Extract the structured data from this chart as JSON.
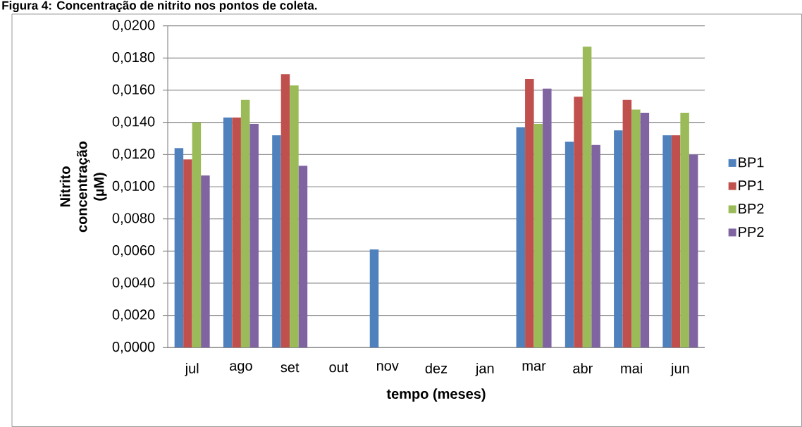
{
  "chart_data": {
    "type": "bar",
    "title": "Figura 4: Concentração de nitrito nos pontos de coleta.",
    "xlabel": "tempo (meses)",
    "ylabel": "Nitrito concentração (µM)",
    "categories": [
      "jul",
      "ago",
      "set",
      "out",
      "nov",
      "dez",
      "jan",
      "mar",
      "abr",
      "mai",
      "jun"
    ],
    "series": [
      {
        "name": "BP1",
        "color": "#4f81bd",
        "values": [
          0.0124,
          0.0143,
          0.0132,
          null,
          0.0061,
          null,
          null,
          0.0137,
          0.0128,
          0.0135,
          0.0132
        ]
      },
      {
        "name": "PP1",
        "color": "#c0504d",
        "values": [
          0.0117,
          0.0143,
          0.017,
          null,
          null,
          null,
          null,
          0.0167,
          0.0156,
          0.0154,
          0.0132
        ]
      },
      {
        "name": "BP2",
        "color": "#9bbb59",
        "values": [
          0.014,
          0.0154,
          0.0163,
          null,
          null,
          null,
          null,
          0.0139,
          0.0187,
          0.0148,
          0.0146
        ]
      },
      {
        "name": "PP2",
        "color": "#8064a2",
        "values": [
          0.0107,
          0.0139,
          0.0113,
          null,
          null,
          null,
          null,
          0.0161,
          0.0126,
          0.0146,
          0.012
        ]
      }
    ],
    "ylim": [
      0,
      0.02
    ],
    "yticks": [
      {
        "value": 0,
        "label": "0,0000"
      },
      {
        "value": 0.002,
        "label": "0,0020"
      },
      {
        "value": 0.004,
        "label": "0,0040"
      },
      {
        "value": 0.006,
        "label": "0,0060"
      },
      {
        "value": 0.008,
        "label": "0,0080"
      },
      {
        "value": 0.01,
        "label": "0,0100"
      },
      {
        "value": 0.012,
        "label": "0,0120"
      },
      {
        "value": 0.014,
        "label": "0,0140"
      },
      {
        "value": 0.016,
        "label": "0,0160"
      },
      {
        "value": 0.018,
        "label": "0,0180"
      },
      {
        "value": 0.02,
        "label": "0,0200"
      }
    ],
    "grid": "y",
    "legend": "right"
  }
}
